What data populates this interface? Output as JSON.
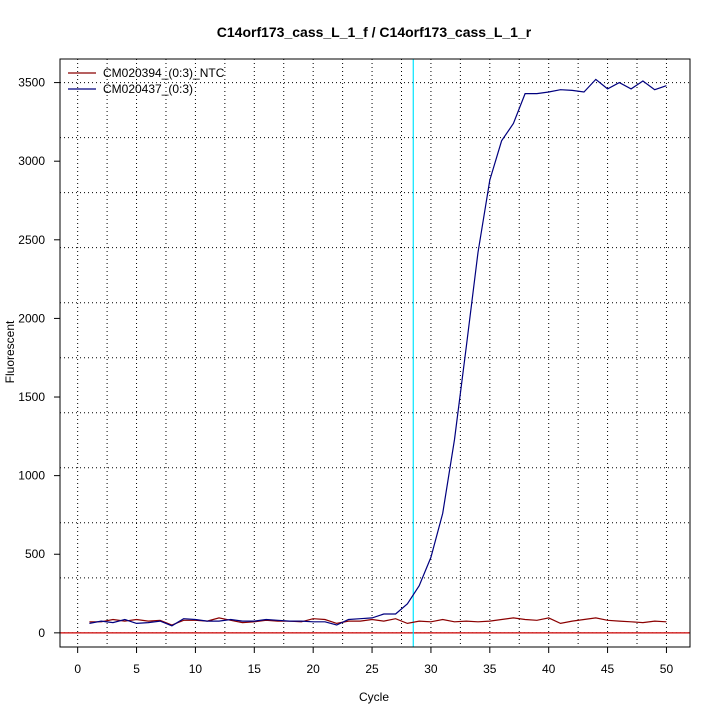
{
  "chart_data": {
    "type": "line",
    "title": "C14orf173_cass_L_1_f / C14orf173_cass_L_1_r",
    "xlabel": "Cycle",
    "ylabel": "Fluorescent",
    "xlim": [
      -1.5,
      52
    ],
    "ylim": [
      -90,
      3650
    ],
    "x_ticks": [
      0,
      5,
      10,
      15,
      20,
      25,
      30,
      35,
      40,
      45,
      50
    ],
    "y_ticks": [
      0,
      500,
      1000,
      1500,
      2000,
      2500,
      3000,
      3500
    ],
    "x_grid": [
      0,
      2.5,
      5,
      7.5,
      10,
      12.5,
      15,
      17.5,
      20,
      22.5,
      25,
      27.5,
      30,
      32.5,
      35,
      37.5,
      40,
      42.5,
      45,
      47.5,
      50
    ],
    "y_grid": [
      0,
      350,
      700,
      1050,
      1400,
      1750,
      2100,
      2450,
      2800,
      3150,
      3500
    ],
    "grid": true,
    "legend_position": "top-left",
    "threshold_x": 28.5,
    "threshold_color": "#00e5ff",
    "baseline_y": 0,
    "baseline_color": "#cc0000",
    "x": [
      1,
      2,
      3,
      4,
      5,
      6,
      7,
      8,
      9,
      10,
      11,
      12,
      13,
      14,
      15,
      16,
      17,
      18,
      19,
      20,
      21,
      22,
      23,
      24,
      25,
      26,
      27,
      28,
      29,
      30,
      31,
      32,
      33,
      34,
      35,
      36,
      37,
      38,
      39,
      40,
      41,
      42,
      43,
      44,
      45,
      46,
      47,
      48,
      49,
      50
    ],
    "series": [
      {
        "name": "CM020394_(0:3)_NTC",
        "color": "#8b0000",
        "values": [
          70,
          70,
          85,
          75,
          85,
          75,
          80,
          50,
          80,
          80,
          75,
          95,
          80,
          65,
          70,
          80,
          75,
          75,
          70,
          90,
          85,
          60,
          75,
          75,
          85,
          75,
          90,
          60,
          75,
          70,
          85,
          70,
          75,
          70,
          75,
          85,
          95,
          85,
          80,
          95,
          60,
          75,
          85,
          95,
          80,
          75,
          70,
          65,
          75,
          70
        ]
      },
      {
        "name": "CM020437_(0:3)",
        "color": "#00007f",
        "values": [
          60,
          75,
          65,
          85,
          60,
          65,
          75,
          45,
          90,
          85,
          75,
          75,
          85,
          75,
          75,
          85,
          80,
          75,
          75,
          70,
          70,
          50,
          85,
          90,
          95,
          120,
          120,
          185,
          300,
          480,
          760,
          1230,
          1820,
          2420,
          2880,
          3130,
          3240,
          3430,
          3430,
          3440,
          3455,
          3450,
          3440,
          3520,
          3460,
          3500,
          3460,
          3510,
          3455,
          3480
        ]
      }
    ]
  }
}
